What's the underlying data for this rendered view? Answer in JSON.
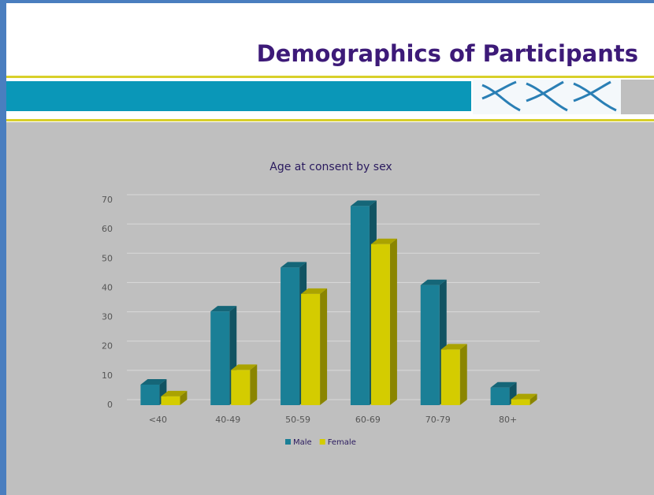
{
  "slide_title": "Demographics of Participants",
  "chart_data": {
    "type": "bar",
    "title": "Age at consent by sex",
    "categories": [
      "<40",
      "40-49",
      "50-59",
      "60-69",
      "70-79",
      "80+"
    ],
    "series": [
      {
        "name": "Male",
        "color": "#1a7f96",
        "values": [
          7,
          32,
          47,
          68,
          41,
          6
        ]
      },
      {
        "name": "Female",
        "color": "#d4cc00",
        "values": [
          3,
          12,
          38,
          55,
          19,
          2
        ]
      }
    ],
    "ylim": [
      0,
      70
    ],
    "yticks": [
      0,
      10,
      20,
      30,
      40,
      50,
      60,
      70
    ],
    "grid": true,
    "legend": "bottom"
  }
}
